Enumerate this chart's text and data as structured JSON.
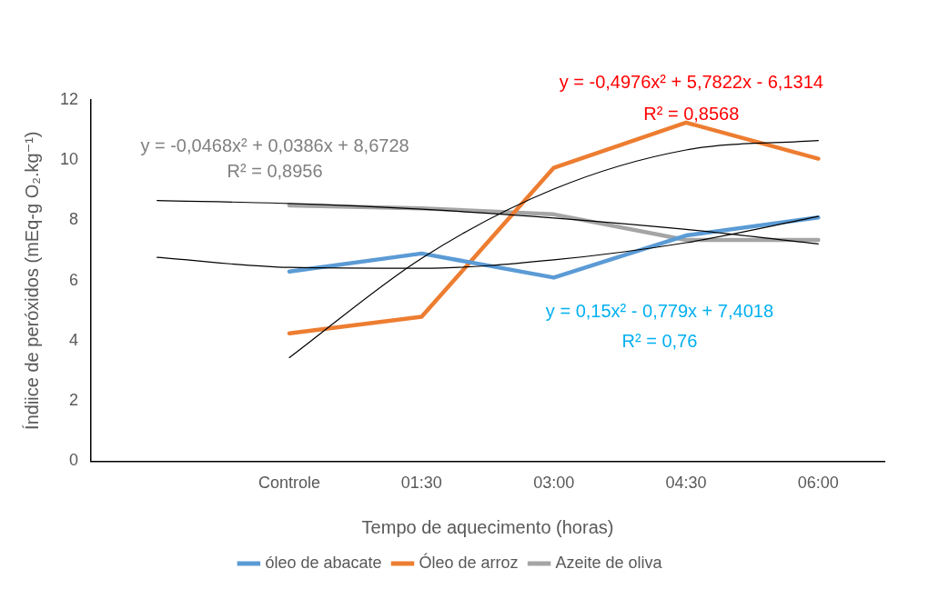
{
  "chart_data": {
    "type": "line",
    "xlabel": "Tempo de aquecimento (horas)",
    "ylabel": "Índiice de peróxidos (mEq-g O₂.kg⁻¹)",
    "categories": [
      null,
      "Controle",
      "01:30",
      "03:00",
      "04:30",
      "06:00"
    ],
    "ylim": [
      0,
      12
    ],
    "yticks": [
      0,
      2,
      4,
      6,
      8,
      10,
      12
    ],
    "grid": false,
    "legend": "bottom",
    "marker": "none",
    "line_style": "solid",
    "series": [
      {
        "name": "óleo de abacate",
        "color": "#5b9bd5",
        "values": [
          null,
          6.3,
          6.9,
          6.1,
          7.5,
          8.1
        ]
      },
      {
        "name": "Óleo de arroz",
        "color": "#ed7d31",
        "values": [
          null,
          4.25,
          4.8,
          9.75,
          11.25,
          10.05
        ]
      },
      {
        "name": "Azeite de oliva",
        "color": "#a5a5a5",
        "values": [
          null,
          8.5,
          8.4,
          8.2,
          7.35,
          7.35
        ]
      },
      {
        "color": "#000000",
        "values": [
          6.77,
          6.44,
          6.41,
          6.69,
          7.26,
          8.13
        ]
      },
      {
        "color": "#000000",
        "values": [
          null,
          3.44,
          6.74,
          9.04,
          10.34,
          10.65
        ]
      },
      {
        "color": "#000000",
        "values": [
          8.66,
          8.56,
          8.37,
          8.08,
          7.7,
          7.22
        ]
      }
    ],
    "annotations": [
      "y = -0,0468x² + 0,0386x + 8,6728",
      "R² = 0,8956",
      "y = -0,4976x² + 5,7822x - 6,1314",
      "R² = 0,8568",
      "y = 0,15x² - 0,779x + 7,4018",
      "R² = 0,76"
    ]
  }
}
